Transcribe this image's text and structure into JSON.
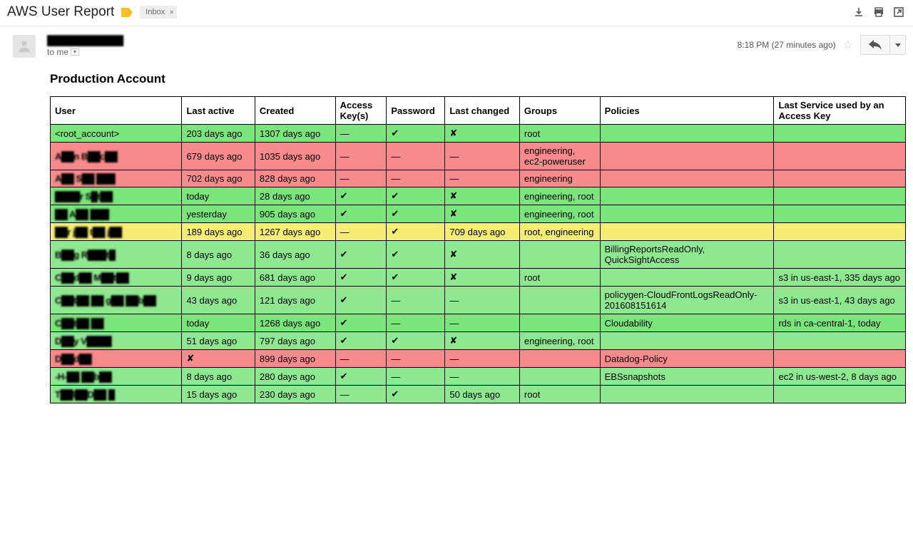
{
  "colors": {
    "green": "#79e57a",
    "green_alt": "#8ee88f",
    "red": "#f78b8b",
    "yellow": "#f7ed72",
    "border": "#000000"
  },
  "header": {
    "subject": "AWS User Report",
    "inbox_label": "Inbox"
  },
  "message": {
    "sender": "████████████",
    "to": "to me",
    "timestamp": "8:18 PM (27 minutes ago)"
  },
  "section_title": "Production Account",
  "table": {
    "columns": [
      "User",
      "Last active",
      "Created",
      "Access Key(s)",
      "Password",
      "Last changed",
      "Groups",
      "Policies",
      "Last Service used by an Access Key"
    ],
    "rows": [
      {
        "color": "green",
        "user": {
          "text": "<root_account>",
          "blur": false
        },
        "last_active": "203 days ago",
        "created": "1307 days ago",
        "keys": "—",
        "password": "✔",
        "changed": "✘",
        "groups": "root",
        "policies": "",
        "service": ""
      },
      {
        "color": "red",
        "user": {
          "text": "A██n B██c██",
          "blur": true
        },
        "last_active": "679 days ago",
        "created": "1035 days ago",
        "keys": "—",
        "password": "—",
        "changed": "—",
        "groups": "engineering, ec2-poweruser",
        "policies": "",
        "service": ""
      },
      {
        "color": "red",
        "user": {
          "text": "A██ S██ ███",
          "blur": true
        },
        "last_active": "702 days ago",
        "created": "828 days ago",
        "keys": "—",
        "password": "—",
        "changed": "—",
        "groups": "engineering",
        "policies": "",
        "service": ""
      },
      {
        "color": "green",
        "user": {
          "text": "████r S█t██",
          "blur": true
        },
        "last_active": "today",
        "created": "28 days ago",
        "keys": "✔",
        "password": "✔",
        "changed": "✘",
        "groups": "engineering, root",
        "policies": "",
        "service": ""
      },
      {
        "color": "green",
        "user": {
          "text": "██ A██ ███",
          "blur": true
        },
        "last_active": "yesterday",
        "created": "905 days ago",
        "keys": "✔",
        "password": "✔",
        "changed": "✘",
        "groups": "engineering, root",
        "policies": "",
        "service": ""
      },
      {
        "color": "yellow",
        "user": {
          "text": "██r j██ t██ j██",
          "blur": true
        },
        "last_active": "189 days ago",
        "created": "1267 days ago",
        "keys": "—",
        "password": "✔",
        "changed": "709 days ago",
        "groups": "root, engineering",
        "policies": "",
        "service": ""
      },
      {
        "color": "green_alt",
        "user": {
          "text": "B██g R███t█",
          "blur": true
        },
        "last_active": "8 days ago",
        "created": "36 days ago",
        "keys": "✔",
        "password": "✔",
        "changed": "✘",
        "groups": "",
        "policies": "BillingReportsReadOnly, QuickSightAccess",
        "service": ""
      },
      {
        "color": "green_alt",
        "user": {
          "text": "C██d██ M██t██",
          "blur": true
        },
        "last_active": "9 days ago",
        "created": "681 days ago",
        "keys": "✔",
        "password": "✔",
        "changed": "✘",
        "groups": "root",
        "policies": "",
        "service": "s3 in us-east-1, 335 days ago"
      },
      {
        "color": "green_alt",
        "user": {
          "text": "C██t██ ██ g██ ██b██",
          "blur": true
        },
        "last_active": "43 days ago",
        "created": "121 days ago",
        "keys": "✔",
        "password": "—",
        "changed": "—",
        "groups": "",
        "policies": "policygen-CloudFrontLogsReadOnly-201608151614",
        "service": "s3 in us-east-1, 43 days ago"
      },
      {
        "color": "green",
        "user": {
          "text": "C██t██ ██",
          "blur": true
        },
        "last_active": "today",
        "created": "1268 days ago",
        "keys": "✔",
        "password": "—",
        "changed": "—",
        "groups": "",
        "policies": "Cloudability",
        "service": "rds in ca-central-1, today"
      },
      {
        "color": "green_alt",
        "user": {
          "text": "D██y V████",
          "blur": true
        },
        "last_active": "51 days ago",
        "created": "797 days ago",
        "keys": "✔",
        "password": "✔",
        "changed": "✘",
        "groups": "engineering, root",
        "policies": "",
        "service": ""
      },
      {
        "color": "red",
        "user": {
          "text": "D██d██",
          "blur": true
        },
        "last_active": "✘",
        "created": "899 days ago",
        "keys": "—",
        "password": "—",
        "changed": "—",
        "groups": "",
        "policies": "Datadog-Policy",
        "service": ""
      },
      {
        "color": "green_alt",
        "user": {
          "text": "-H-██ ██b██",
          "blur": true
        },
        "last_active": "8 days ago",
        "created": "280 days ago",
        "keys": "✔",
        "password": "—",
        "changed": "—",
        "groups": "",
        "policies": "EBSsnapshots",
        "service": "ec2 in us-west-2, 8 days ago"
      },
      {
        "color": "green_alt",
        "user": {
          "text": "T██l██D██ █",
          "blur": true
        },
        "last_active": "15 days ago",
        "created": "230 days ago",
        "keys": "—",
        "password": "✔",
        "changed": "50 days ago",
        "groups": "root",
        "policies": "",
        "service": ""
      }
    ]
  }
}
